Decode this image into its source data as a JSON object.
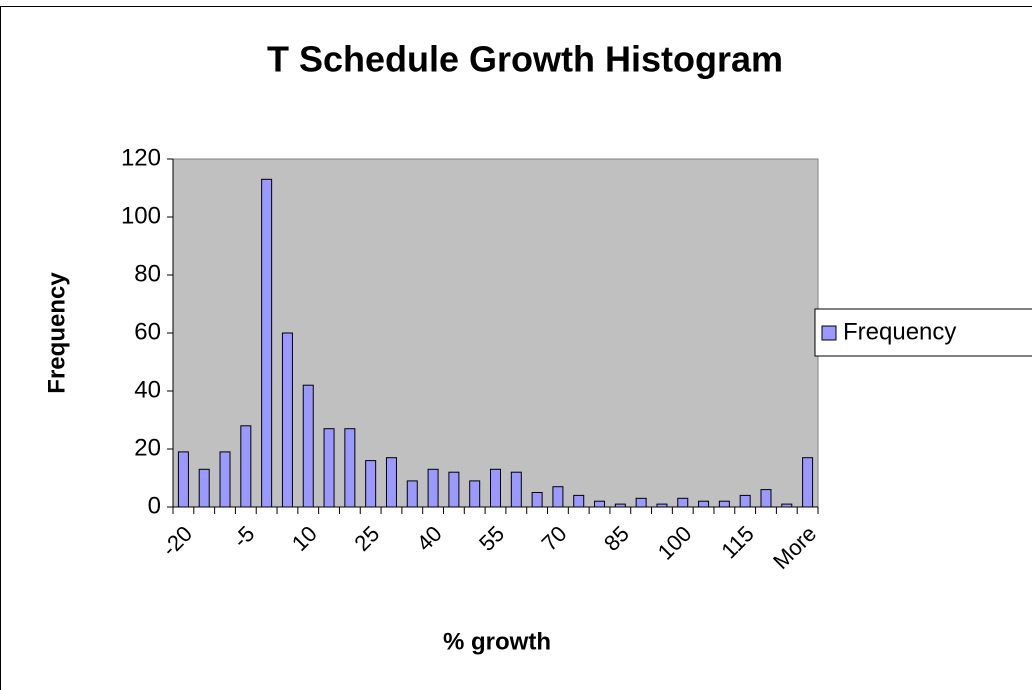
{
  "chart_data": {
    "type": "bar",
    "title": "T Schedule Growth Histogram",
    "x_label": "% growth",
    "y_label": "Frequency",
    "categories": [
      "-20",
      null,
      null,
      "-5",
      null,
      null,
      "10",
      null,
      null,
      "25",
      null,
      null,
      "40",
      null,
      null,
      "55",
      null,
      null,
      "70",
      null,
      null,
      "85",
      null,
      null,
      "100",
      null,
      null,
      "115",
      null,
      null,
      "More"
    ],
    "series": [
      {
        "name": "Frequency",
        "color": "#9999ff",
        "values": [
          19,
          13,
          19,
          28,
          113,
          60,
          42,
          27,
          27,
          16,
          17,
          9,
          13,
          12,
          9,
          13,
          12,
          5,
          7,
          4,
          2,
          1,
          3,
          1,
          3,
          2,
          2,
          4,
          6,
          1,
          17
        ]
      }
    ],
    "ylim": [
      0,
      120
    ],
    "yticks": [
      0,
      20,
      40,
      60,
      80,
      100,
      120
    ],
    "grid": false,
    "legend": "right",
    "plot_background": "#c0c0c0"
  }
}
